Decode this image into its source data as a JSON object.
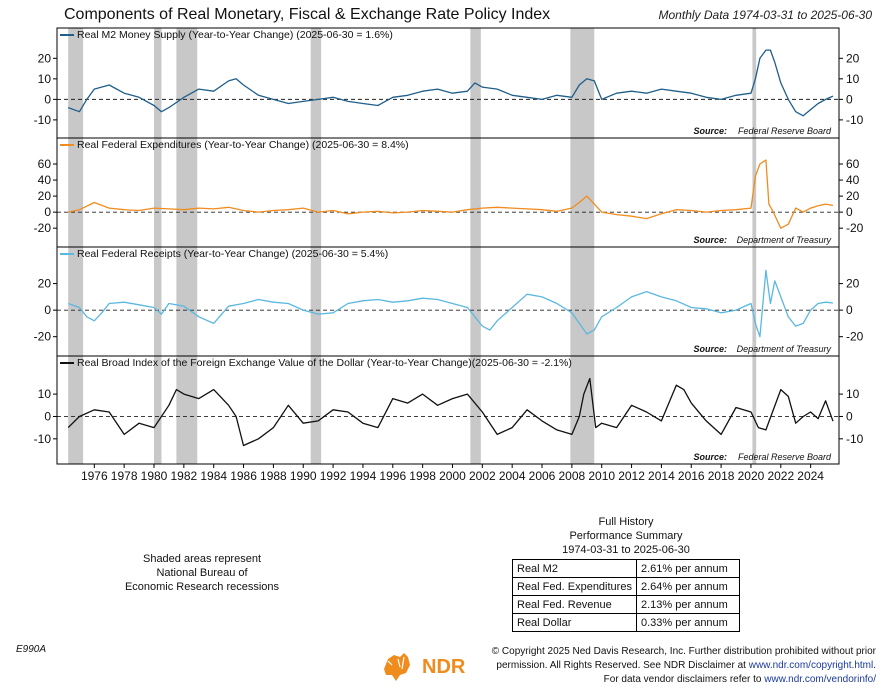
{
  "header": {
    "title": "Components of Real Monetary, Fiscal & Exchange Rate Policy Index",
    "period": "Monthly Data 1974-03-31 to 2025-06-30"
  },
  "recession_note": {
    "line1": "Shaded areas represent",
    "line2": "National Bureau of",
    "line3": "Economic Research recessions"
  },
  "summary": {
    "title1": "Full History",
    "title2": "Performance Summary",
    "range": "1974-03-31 to 2025-06-30",
    "rows": [
      {
        "label": "Real M2",
        "value": "2.61% per annum"
      },
      {
        "label": "Real Fed. Expenditures",
        "value": "2.64% per annum"
      },
      {
        "label": "Real Fed. Revenue",
        "value": "2.13% per annum"
      },
      {
        "label": "Real Dollar",
        "value": "0.33% per annum"
      }
    ]
  },
  "footer": {
    "code": "E990A",
    "logo_text": "NDR",
    "copyright1": "© Copyright 2025 Ned Davis Research, Inc. Further distribution prohibited without prior",
    "copyright2a": "permission. All Rights Reserved. See NDR Disclaimer at ",
    "copyright2b": "www.ndr.com/copyright.html",
    "copyright2c": ".",
    "copyright3a": "For data vendor disclaimers refer to ",
    "copyright3b": "www.ndr.com/vendorinfo/"
  },
  "colors": {
    "m2": "#1f5f8b",
    "expenditures": "#f08c1e",
    "receipts": "#5bb8e0",
    "dollar": "#111111",
    "recession": "#c8c8c8",
    "logo": "#f08c1e"
  },
  "chart_data": [
    {
      "type": "line",
      "legend": "Real M2 Money Supply (Year-to-Year Change) (2025-06-30 = 1.6%)",
      "source": "Federal Reserve Board",
      "color": "m2",
      "ylim": [
        -12,
        26
      ],
      "yticks": [
        20,
        10,
        0,
        -10
      ],
      "reference_line": 0,
      "x": [
        1974.25,
        1975.0,
        1975.5,
        1976.0,
        1977.0,
        1978.0,
        1979.0,
        1980.0,
        1980.5,
        1981.0,
        1982.0,
        1983.0,
        1984.0,
        1985.0,
        1985.5,
        1986.0,
        1987.0,
        1988.0,
        1989.0,
        1990.0,
        1991.0,
        1992.0,
        1993.0,
        1994.0,
        1995.0,
        1996.0,
        1997.0,
        1998.0,
        1999.0,
        2000.0,
        2001.0,
        2001.5,
        2002.0,
        2003.0,
        2004.0,
        2005.0,
        2006.0,
        2007.0,
        2008.0,
        2008.5,
        2009.0,
        2009.5,
        2010.0,
        2011.0,
        2012.0,
        2013.0,
        2014.0,
        2015.0,
        2016.0,
        2017.0,
        2018.0,
        2019.0,
        2020.0,
        2020.3,
        2020.6,
        2021.0,
        2021.3,
        2021.6,
        2022.0,
        2022.5,
        2023.0,
        2023.5,
        2024.0,
        2024.5,
        2025.0,
        2025.5
      ],
      "y": [
        -4,
        -6,
        0,
        5,
        7,
        3,
        1,
        -3,
        -6,
        -4,
        1,
        5,
        4,
        9,
        10,
        7,
        2,
        0,
        -2,
        -1,
        0,
        1,
        -1,
        -2,
        -3,
        1,
        2,
        4,
        5,
        3,
        4,
        8,
        6,
        5,
        2,
        1,
        0,
        2,
        1,
        7,
        10,
        9,
        0,
        3,
        4,
        3,
        5,
        4,
        3,
        1,
        0,
        2,
        3,
        10,
        20,
        24,
        24,
        18,
        8,
        0,
        -6,
        -8,
        -5,
        -2,
        0,
        1.6
      ]
    },
    {
      "type": "line",
      "legend": "Real Federal Expenditures (Year-to-Year Change) (2025-06-30 = 8.4%)",
      "source": "Department of Treasury",
      "color": "expenditures",
      "ylim": [
        -26,
        70
      ],
      "yticks": [
        60,
        40,
        20,
        0,
        -20
      ],
      "reference_line": 0,
      "x": [
        1974.25,
        1975.0,
        1976.0,
        1977.0,
        1978.0,
        1979.0,
        1980.0,
        1981.0,
        1982.0,
        1983.0,
        1984.0,
        1985.0,
        1986.0,
        1987.0,
        1988.0,
        1989.0,
        1990.0,
        1991.0,
        1992.0,
        1993.0,
        1994.0,
        1995.0,
        1996.0,
        1997.0,
        1998.0,
        1999.0,
        2000.0,
        2001.0,
        2002.0,
        2003.0,
        2004.0,
        2005.0,
        2006.0,
        2007.0,
        2008.0,
        2008.5,
        2009.0,
        2009.5,
        2010.0,
        2011.0,
        2012.0,
        2013.0,
        2014.0,
        2015.0,
        2016.0,
        2017.0,
        2018.0,
        2019.0,
        2020.0,
        2020.3,
        2020.6,
        2021.0,
        2021.2,
        2021.5,
        2022.0,
        2022.5,
        2023.0,
        2023.5,
        2024.0,
        2024.5,
        2025.0,
        2025.5
      ],
      "y": [
        0,
        3,
        12,
        5,
        3,
        2,
        5,
        4,
        3,
        5,
        4,
        6,
        2,
        0,
        2,
        3,
        5,
        0,
        2,
        -2,
        0,
        1,
        -1,
        0,
        2,
        1,
        0,
        3,
        5,
        6,
        5,
        4,
        3,
        1,
        5,
        12,
        20,
        10,
        0,
        -3,
        -5,
        -8,
        -2,
        3,
        2,
        0,
        2,
        3,
        5,
        45,
        60,
        65,
        10,
        0,
        -20,
        -15,
        5,
        0,
        5,
        8,
        10,
        8.4
      ]
    },
    {
      "type": "line",
      "legend": "Real Federal Receipts (Year-to-Year Change) (2025-06-30 = 5.4%)",
      "source": "Department of Treasury",
      "color": "receipts",
      "ylim": [
        -24,
        34
      ],
      "yticks": [
        20,
        0,
        -20
      ],
      "reference_line": 0,
      "x": [
        1974.25,
        1975.0,
        1975.5,
        1976.0,
        1976.5,
        1977.0,
        1978.0,
        1979.0,
        1980.0,
        1980.5,
        1981.0,
        1982.0,
        1983.0,
        1984.0,
        1985.0,
        1986.0,
        1987.0,
        1988.0,
        1989.0,
        1990.0,
        1991.0,
        1992.0,
        1993.0,
        1994.0,
        1995.0,
        1996.0,
        1997.0,
        1998.0,
        1999.0,
        2000.0,
        2001.0,
        2001.5,
        2002.0,
        2002.5,
        2003.0,
        2004.0,
        2005.0,
        2006.0,
        2007.0,
        2008.0,
        2008.5,
        2009.0,
        2009.5,
        2010.0,
        2011.0,
        2012.0,
        2013.0,
        2014.0,
        2015.0,
        2016.0,
        2017.0,
        2018.0,
        2019.0,
        2020.0,
        2020.3,
        2020.6,
        2021.0,
        2021.3,
        2021.6,
        2022.0,
        2022.5,
        2023.0,
        2023.5,
        2024.0,
        2024.5,
        2025.0,
        2025.5
      ],
      "y": [
        5,
        2,
        -5,
        -8,
        -2,
        5,
        6,
        4,
        2,
        -3,
        5,
        3,
        -5,
        -10,
        3,
        5,
        8,
        6,
        5,
        0,
        -3,
        -2,
        5,
        7,
        8,
        6,
        7,
        9,
        8,
        5,
        2,
        -5,
        -12,
        -15,
        -8,
        2,
        12,
        10,
        5,
        -2,
        -10,
        -18,
        -15,
        -5,
        2,
        10,
        14,
        10,
        7,
        2,
        1,
        -2,
        0,
        5,
        -10,
        -20,
        30,
        5,
        22,
        10,
        -5,
        -12,
        -10,
        0,
        5,
        6,
        5.4
      ]
    },
    {
      "type": "line",
      "legend": "Real Broad Index of the Foreign Exchange Value of the Dollar (Year-to-Year Change)(2025-06-30 = -2.1%)",
      "source": "Federal Reserve Board",
      "color": "dollar",
      "ylim": [
        -15,
        19
      ],
      "yticks": [
        10,
        0,
        -10
      ],
      "reference_line": 0,
      "x": [
        1974.25,
        1975.0,
        1976.0,
        1977.0,
        1978.0,
        1979.0,
        1980.0,
        1981.0,
        1981.5,
        1982.0,
        1983.0,
        1984.0,
        1985.0,
        1985.5,
        1986.0,
        1987.0,
        1988.0,
        1989.0,
        1990.0,
        1991.0,
        1992.0,
        1993.0,
        1994.0,
        1995.0,
        1996.0,
        1997.0,
        1998.0,
        1999.0,
        2000.0,
        2001.0,
        2002.0,
        2003.0,
        2004.0,
        2005.0,
        2006.0,
        2007.0,
        2008.0,
        2008.5,
        2008.8,
        2009.2,
        2009.6,
        2010.0,
        2011.0,
        2012.0,
        2013.0,
        2014.0,
        2015.0,
        2015.5,
        2016.0,
        2017.0,
        2018.0,
        2019.0,
        2020.0,
        2020.5,
        2021.0,
        2022.0,
        2022.5,
        2023.0,
        2023.5,
        2024.0,
        2024.5,
        2025.0,
        2025.5
      ],
      "y": [
        -5,
        0,
        3,
        2,
        -8,
        -3,
        -5,
        5,
        12,
        10,
        8,
        12,
        5,
        0,
        -13,
        -10,
        -5,
        5,
        -3,
        -2,
        3,
        2,
        -3,
        -5,
        8,
        6,
        10,
        5,
        8,
        10,
        2,
        -8,
        -5,
        3,
        -2,
        -6,
        -8,
        0,
        10,
        17,
        -5,
        -3,
        -5,
        5,
        2,
        -2,
        14,
        12,
        6,
        -2,
        -8,
        4,
        2,
        -5,
        -6,
        12,
        9,
        -3,
        0,
        2,
        -1,
        7,
        -2.1
      ]
    }
  ],
  "x_axis": {
    "xlim": [
      1973.5,
      2025.9
    ],
    "tick_labels": [
      "1976",
      "1978",
      "1980",
      "1982",
      "1984",
      "1986",
      "1988",
      "1990",
      "1992",
      "1994",
      "1996",
      "1998",
      "2000",
      "2002",
      "2004",
      "2006",
      "2008",
      "2010",
      "2012",
      "2014",
      "2016",
      "2018",
      "2020",
      "2022",
      "2024"
    ]
  },
  "recessions": [
    {
      "start": 1974.25,
      "end": 1975.25
    },
    {
      "start": 1980.0,
      "end": 1980.5
    },
    {
      "start": 1981.5,
      "end": 1982.9
    },
    {
      "start": 1990.5,
      "end": 1991.2
    },
    {
      "start": 2001.2,
      "end": 2001.9
    },
    {
      "start": 2007.9,
      "end": 2009.5
    },
    {
      "start": 2020.1,
      "end": 2020.35
    }
  ],
  "source_label": "Source:"
}
